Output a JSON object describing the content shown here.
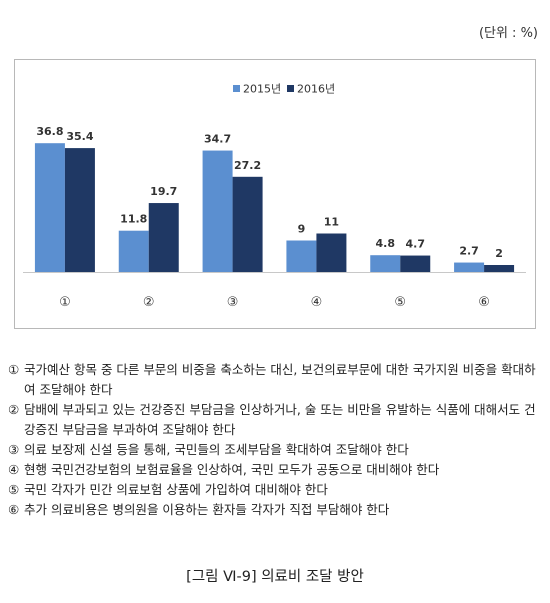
{
  "unit_label": "(단위 : %)",
  "chart_data": {
    "type": "bar",
    "categories": [
      "①",
      "②",
      "③",
      "④",
      "⑤",
      "⑥"
    ],
    "series": [
      {
        "name": "2015년",
        "values": [
          36.8,
          11.8,
          34.7,
          9,
          4.8,
          2.7
        ],
        "color": "#5b8fd0"
      },
      {
        "name": "2016년",
        "values": [
          35.4,
          19.7,
          27.2,
          11,
          4.7,
          2
        ],
        "color": "#1f3864"
      }
    ],
    "ylim": [
      0,
      40
    ],
    "grid": false,
    "legend_position": "top-center",
    "title": "",
    "xlabel": "",
    "ylabel": ""
  },
  "notes": [
    {
      "num": "①",
      "text": "국가예산 항목 중 다른 부문의 비중을 축소하는 대신, 보건의료부문에 대한 국가지원 비중을 확대하여 조달해야 한다"
    },
    {
      "num": "②",
      "text": "담배에 부과되고 있는 건강증진 부담금을 인상하거나, 술 또는 비만을 유발하는 식품에 대해서도 건강증진 부담금을 부과하여 조달해야 한다"
    },
    {
      "num": "③",
      "text": "의료 보장제 신설 등을 통해, 국민들의 조세부담을 확대하여 조달해야 한다"
    },
    {
      "num": "④",
      "text": "현행 국민건강보험의 보험료율을 인상하여, 국민 모두가 공동으로 대비해야 한다"
    },
    {
      "num": "⑤",
      "text": "국민 각자가 민간 의료보험 상품에 가입하여 대비해야 한다"
    },
    {
      "num": "⑥",
      "text": "추가 의료비용은 병의원을 이용하는 환자들 각자가 직접 부담해야 한다"
    }
  ],
  "caption": "[그림 Ⅵ-9] 의료비 조달 방안"
}
